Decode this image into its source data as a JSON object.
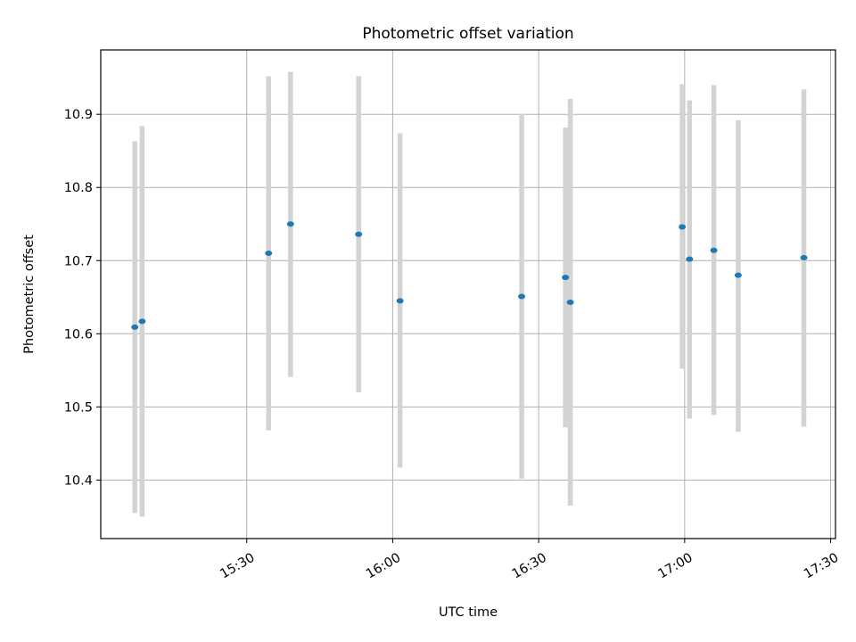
{
  "chart_data": {
    "type": "scatter",
    "title": "Photometric offset variation",
    "xlabel": "UTC time",
    "ylabel": "Photometric offset",
    "x_tick_labels": [
      "15:30",
      "16:00",
      "16:30",
      "17:00",
      "17:30"
    ],
    "x_tick_values": [
      "15:30",
      "16:00",
      "16:30",
      "17:00",
      "17:30"
    ],
    "xlim": [
      "15:00",
      "17:31"
    ],
    "y_tick_labels": [
      "10.4",
      "10.5",
      "10.6",
      "10.7",
      "10.8",
      "10.9"
    ],
    "y_tick_values": [
      10.4,
      10.5,
      10.6,
      10.7,
      10.8,
      10.9
    ],
    "ylim": [
      10.32,
      10.988
    ],
    "grid": true,
    "point_color": "#1f77b4",
    "errorbar_color": "#d3d3d3",
    "points": [
      {
        "x": "15:07",
        "y": 10.609,
        "ymin": 10.355,
        "ymax": 10.863
      },
      {
        "x": "15:08.5",
        "y": 10.617,
        "ymin": 10.35,
        "ymax": 10.884
      },
      {
        "x": "15:34.5",
        "y": 10.71,
        "ymin": 10.468,
        "ymax": 10.952
      },
      {
        "x": "15:39",
        "y": 10.75,
        "ymin": 10.541,
        "ymax": 10.958
      },
      {
        "x": "15:53",
        "y": 10.736,
        "ymin": 10.52,
        "ymax": 10.952
      },
      {
        "x": "16:01.5",
        "y": 10.645,
        "ymin": 10.417,
        "ymax": 10.874
      },
      {
        "x": "16:26.5",
        "y": 10.651,
        "ymin": 10.402,
        "ymax": 10.901
      },
      {
        "x": "16:35.5",
        "y": 10.677,
        "ymin": 10.472,
        "ymax": 10.882
      },
      {
        "x": "16:36.5",
        "y": 10.643,
        "ymin": 10.365,
        "ymax": 10.921
      },
      {
        "x": "16:59.5",
        "y": 10.746,
        "ymin": 10.552,
        "ymax": 10.941
      },
      {
        "x": "17:01",
        "y": 10.702,
        "ymin": 10.484,
        "ymax": 10.919
      },
      {
        "x": "17:06",
        "y": 10.714,
        "ymin": 10.489,
        "ymax": 10.94
      },
      {
        "x": "17:11",
        "y": 10.68,
        "ymin": 10.466,
        "ymax": 10.892
      },
      {
        "x": "17:24.5",
        "y": 10.704,
        "ymin": 10.473,
        "ymax": 10.934
      }
    ]
  }
}
